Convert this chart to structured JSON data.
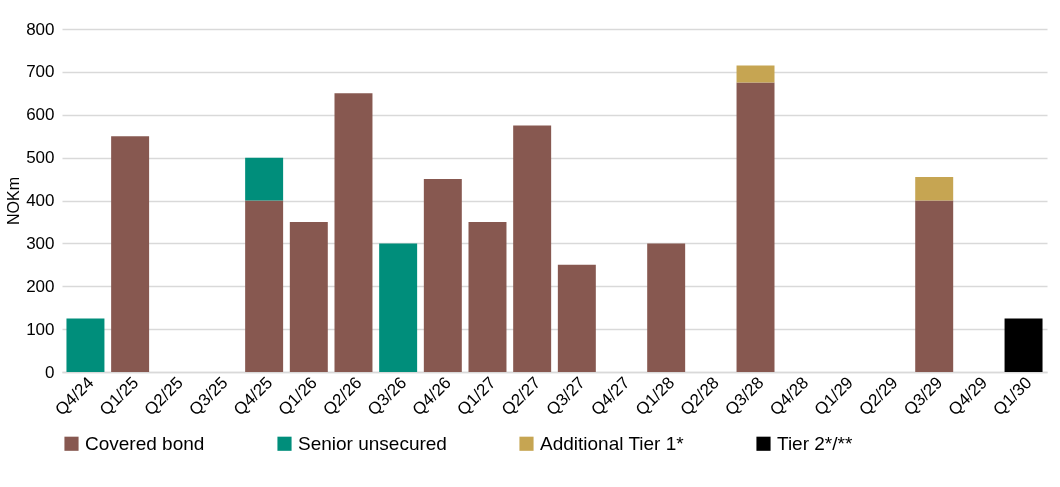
{
  "chart_data": {
    "type": "bar",
    "stacked": true,
    "ylabel": "NOKm",
    "categories": [
      "Q4/24",
      "Q1/25",
      "Q2/25",
      "Q3/25",
      "Q4/25",
      "Q1/26",
      "Q2/26",
      "Q3/26",
      "Q4/26",
      "Q1/27",
      "Q2/27",
      "Q3/27",
      "Q4/27",
      "Q1/28",
      "Q2/28",
      "Q3/28",
      "Q4/28",
      "Q1/29",
      "Q2/29",
      "Q3/29",
      "Q4/29",
      "Q1/30"
    ],
    "series": [
      {
        "name": "Covered bond",
        "color": "#875850",
        "values": [
          null,
          550,
          null,
          null,
          400,
          350,
          650,
          null,
          450,
          350,
          575,
          250,
          null,
          300,
          null,
          675,
          null,
          null,
          null,
          400,
          null,
          null
        ]
      },
      {
        "name": "Senior unsecured",
        "color": "#008e7b",
        "values": [
          125,
          null,
          null,
          null,
          100,
          null,
          null,
          300,
          null,
          null,
          null,
          null,
          null,
          null,
          null,
          null,
          null,
          null,
          null,
          null,
          null,
          null
        ]
      },
      {
        "name": "Additional Tier 1*",
        "color": "#c6a552",
        "values": [
          null,
          null,
          null,
          null,
          null,
          null,
          null,
          null,
          null,
          null,
          null,
          null,
          null,
          null,
          null,
          40,
          null,
          null,
          null,
          55,
          null,
          null
        ]
      },
      {
        "name": "Tier 2*/**",
        "color": "#000000",
        "values": [
          null,
          null,
          null,
          null,
          null,
          null,
          null,
          null,
          null,
          null,
          null,
          null,
          null,
          null,
          null,
          null,
          null,
          null,
          null,
          null,
          null,
          125
        ]
      }
    ],
    "ylim": [
      0,
      800
    ],
    "yticks": [
      0,
      100,
      200,
      300,
      400,
      500,
      600,
      700,
      800
    ],
    "grid": "y",
    "legend": "bottom"
  }
}
